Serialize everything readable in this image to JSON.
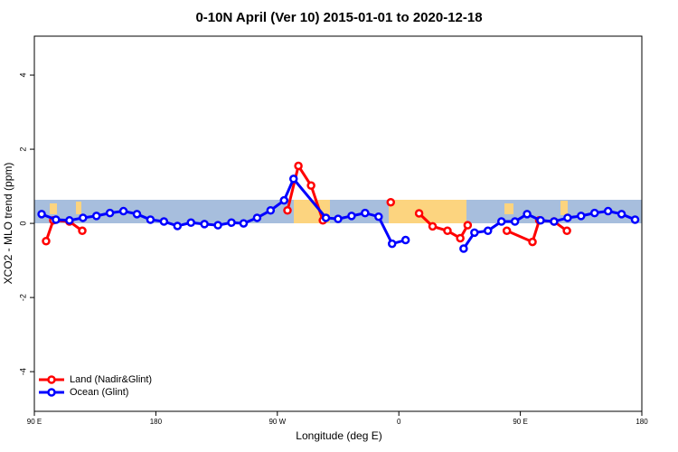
{
  "chart_data": {
    "type": "line",
    "title": "0-10N April (Ver 10)   2015-01-01 to 2020-12-18",
    "x_label": "Longitude (deg E)",
    "y_label": "XCO2 - MLO trend (ppm)",
    "xlim": [
      90,
      540
    ],
    "xticks": [
      {
        "value": 90,
        "label": "90 E"
      },
      180,
      {
        "value": 270,
        "label": "90 W"
      },
      {
        "value": 360,
        "label": "0"
      },
      {
        "value": 450,
        "label": "90 E"
      },
      {
        "value": 540,
        "label": "180"
      }
    ],
    "ylim": [
      -5.07,
      5.05
    ],
    "yticks": [
      -4,
      -2,
      0,
      2,
      4
    ],
    "legend": "bottom-left",
    "series": [
      {
        "name": "Land (Nadir&Glint)",
        "color": "#ff0000",
        "x": [
          98.7,
          104,
          116,
          125.5,
          null,
          277.5,
          285.6,
          295,
          303.7,
          null,
          354,
          null,
          375,
          385,
          396,
          405.5,
          411,
          null,
          440,
          459,
          464,
          475,
          484.5
        ],
        "values": [
          -0.48,
          0.08,
          0.05,
          -0.2,
          null,
          0.35,
          1.55,
          1.02,
          0.08,
          null,
          0.57,
          null,
          0.27,
          -0.08,
          -0.2,
          -0.4,
          -0.05,
          null,
          -0.2,
          -0.5,
          0.08,
          0.05,
          -0.2
        ]
      },
      {
        "name": "Ocean (Glint)",
        "color": "#0000ff",
        "x": [
          95.4,
          106,
          116,
          126,
          136,
          146,
          156,
          166,
          176,
          186,
          196,
          206,
          216,
          226,
          236,
          245,
          255,
          265,
          275,
          282,
          306,
          315,
          325,
          335,
          345,
          355,
          365,
          null,
          408,
          416,
          426,
          436,
          446,
          455,
          465,
          475,
          485,
          495,
          505,
          515,
          525,
          535
        ],
        "values": [
          0.25,
          0.1,
          0.08,
          0.15,
          0.2,
          0.28,
          0.33,
          0.25,
          0.1,
          0.05,
          -0.07,
          0.02,
          -0.02,
          -0.05,
          0.02,
          0.0,
          0.15,
          0.35,
          0.62,
          1.2,
          0.15,
          0.12,
          0.2,
          0.28,
          0.18,
          -0.55,
          -0.45,
          null,
          -0.68,
          -0.25,
          -0.2,
          0.05,
          0.05,
          0.25,
          0.08,
          0.05,
          0.15,
          0.2,
          0.28,
          0.33,
          0.25,
          0.1
        ]
      }
    ]
  }
}
